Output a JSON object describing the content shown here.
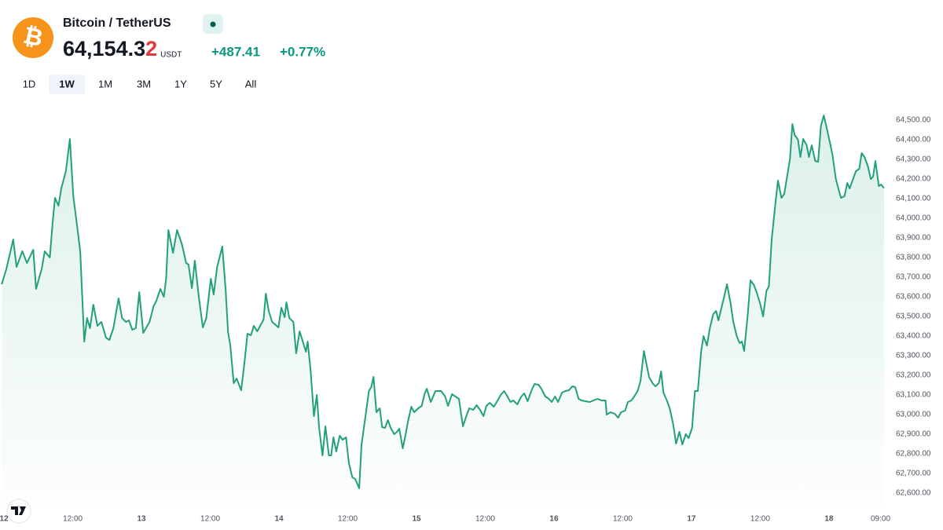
{
  "header": {
    "icon": "₿",
    "title": "Bitcoin / TetherUS",
    "price": "64,154.3",
    "price_last_digit": "2",
    "currency": "USDT",
    "change": "+487.41",
    "change_percent": "+0.77%"
  },
  "timeframes": [
    "1D",
    "1W",
    "1M",
    "3M",
    "1Y",
    "5Y",
    "All"
  ],
  "active_timeframe": "1W",
  "chart_data": {
    "type": "line",
    "color": "#22a07c",
    "grid": false,
    "x": [
      -0.4,
      0.4,
      1.6,
      2.2,
      3.2,
      4.0,
      5.1,
      5.6,
      6.6,
      7.1,
      8.0,
      8.5,
      8.9,
      9.5,
      10.0,
      10.8,
      11.5,
      12.1,
      12.8,
      13.3,
      14.0,
      14.5,
      15.0,
      15.6,
      16.3,
      17.0,
      17.8,
      18.4,
      19.1,
      20.0,
      20.6,
      21.3,
      21.8,
      22.4,
      23.0,
      23.6,
      24.3,
      25.4,
      26.1,
      26.6,
      27.3,
      27.9,
      28.3,
      28.7,
      29.5,
      30.2,
      31.1,
      31.8,
      32.2,
      32.8,
      33.3,
      34.0,
      34.7,
      35.3,
      36.1,
      36.6,
      37.2,
      38.1,
      38.7,
      39.1,
      39.5,
      40.1,
      40.6,
      41.4,
      42.0,
      42.5,
      43.1,
      43.6,
      44.2,
      45.3,
      45.7,
      46.2,
      46.8,
      47.9,
      48.4,
      49.0,
      49.3,
      49.8,
      50.5,
      51.0,
      51.6,
      52.7,
      53.0,
      53.5,
      54.1,
      54.6,
      55.0,
      55.6,
      56.1,
      56.7,
      57.1,
      57.5,
      58.0,
      58.6,
      59.1,
      59.7,
      60.2,
      60.8,
      61.3,
      62.0,
      62.4,
      63.1,
      63.7,
      64.1,
      64.5,
      65.0,
      65.6,
      66.0,
      66.5,
      67.0,
      67.5,
      68.1,
      68.6,
      69.0,
      69.6,
      70.1,
      70.5,
      71.1,
      71.6,
      72.3,
      72.9,
      73.4,
      73.8,
      74.5,
      75.3,
      76.3,
      77.0,
      77.5,
      78.2,
      79.4,
      80.1,
      80.7,
      81.2,
      81.9,
      82.5,
      83.1,
      83.7,
      84.2,
      84.8,
      85.5,
      86.0,
      86.7,
      87.3,
      87.8,
      88.4,
      88.9,
      89.6,
      90.3,
      90.8,
      91.4,
      92.1,
      92.6,
      93.3,
      93.8,
      94.5,
      95.1,
      95.6,
      96.2,
      96.7,
      97.4,
      98.0,
      98.6,
      99.2,
      99.7,
      100.3,
      100.8,
      102.2,
      103.6,
      104.3,
      105.0,
      105.2,
      105.9,
      106.6,
      107.2,
      107.7,
      108.4,
      108.9,
      109.5,
      110.0,
      110.6,
      111.1,
      111.7,
      112.1,
      112.6,
      113.2,
      113.7,
      114.3,
      114.7,
      115.1,
      115.7,
      116.2,
      116.8,
      117.3,
      117.9,
      118.4,
      119.0,
      119.5,
      120.1,
      120.6,
      121.1,
      121.7,
      122.1,
      122.7,
      123.2,
      123.8,
      124.3,
      124.7,
      125.3,
      125.7,
      126.2,
      126.8,
      127.3,
      127.9,
      128.4,
      128.8,
      129.2,
      129.8,
      130.3,
      130.9,
      131.4,
      132.0,
      132.5,
      133.1,
      133.5,
      134.0,
      134.6,
      135.1,
      135.7,
      136.2,
      136.8,
      137.2,
      137.6,
      138.0,
      138.6,
      139.0,
      139.5,
      140.1,
      140.5,
      141.0,
      141.6,
      142.1,
      142.6,
      143.1,
      143.7,
      144.2,
      144.6,
      145.2,
      145.7,
      146.1,
      146.7,
      147.2,
      147.6,
      148.2,
      148.7,
      149.3,
      149.7,
      150.2,
      150.8,
      151.3,
      151.7,
      152.1,
      152.7,
      153.1,
      153.6
    ],
    "values": [
      63664,
      63740,
      63892,
      63752,
      63832,
      63772,
      63840,
      63640,
      63744,
      63832,
      63800,
      63984,
      64104,
      64064,
      64152,
      64240,
      64404,
      64112,
      63952,
      63832,
      63372,
      63492,
      63440,
      63560,
      63452,
      63472,
      63392,
      63380,
      63440,
      63592,
      63492,
      63472,
      63480,
      63432,
      63440,
      63624,
      63416,
      63472,
      63552,
      63580,
      63640,
      63600,
      63692,
      63940,
      63824,
      63940,
      63864,
      63772,
      63764,
      63644,
      63784,
      63600,
      63444,
      63492,
      63692,
      63612,
      63752,
      63856,
      63632,
      63420,
      63352,
      63160,
      63184,
      63124,
      63272,
      63412,
      63404,
      63452,
      63424,
      63484,
      63616,
      63528,
      63472,
      63444,
      63544,
      63496,
      63572,
      63492,
      63472,
      63312,
      63424,
      63320,
      63372,
      63232,
      62992,
      63100,
      62932,
      62792,
      62940,
      62792,
      62792,
      62884,
      62812,
      62892,
      62872,
      62884,
      62752,
      62680,
      62672,
      62624,
      62844,
      62992,
      63120,
      63140,
      63192,
      63012,
      63032,
      62936,
      62932,
      62972,
      62932,
      62900,
      62912,
      62928,
      62828,
      62900,
      62964,
      63040,
      63012,
      63032,
      63044,
      63104,
      63132,
      63064,
      63120,
      63120,
      63092,
      63044,
      63104,
      63080,
      62940,
      62992,
      63032,
      63024,
      63048,
      63024,
      62992,
      63044,
      63060,
      63040,
      63064,
      63100,
      63120,
      63096,
      63064,
      63072,
      63052,
      63092,
      63108,
      63068,
      63124,
      63156,
      63152,
      63132,
      63092,
      63080,
      63064,
      63092,
      63064,
      63112,
      63120,
      63124,
      63144,
      63140,
      63080,
      63072,
      63064,
      63080,
      63072,
      63072,
      63000,
      63012,
      63004,
      62984,
      63012,
      63020,
      63064,
      63072,
      63092,
      63120,
      63172,
      63324,
      63264,
      63192,
      63160,
      63144,
      63160,
      63220,
      63112,
      63072,
      63032,
      62952,
      62852,
      62912,
      62848,
      62900,
      62880,
      62932,
      63120,
      63120,
      63324,
      63400,
      63352,
      63440,
      63512,
      63528,
      63480,
      63552,
      63600,
      63664,
      63572,
      63472,
      63400,
      63364,
      63372,
      63324,
      63504,
      63684,
      63660,
      63620,
      63564,
      63500,
      63632,
      63652,
      63892,
      64064,
      64192,
      64104,
      64124,
      64232,
      64304,
      64480,
      64424,
      64400,
      64312,
      64404,
      64372,
      64312,
      64372,
      64292,
      64288,
      64472,
      64524,
      64448,
      64380,
      64324,
      64200,
      64144,
      64104,
      64112,
      64180,
      64152,
      64200,
      64240,
      64252,
      64332,
      64312,
      64264,
      64200,
      64212,
      64292,
      64164,
      64172,
      64154
    ],
    "xlim": [
      -0.7,
      154.3
    ],
    "xticks": [
      {
        "value": 0,
        "label": "12"
      },
      {
        "value": 12,
        "label": "12:00"
      },
      {
        "value": 24,
        "label": "13"
      },
      {
        "value": 36,
        "label": "12:00"
      },
      {
        "value": 48,
        "label": "14"
      },
      {
        "value": 60,
        "label": "12:00"
      },
      {
        "value": 72,
        "label": "15"
      },
      {
        "value": 84,
        "label": "12:00"
      },
      {
        "value": 96,
        "label": "16"
      },
      {
        "value": 108,
        "label": "12:00"
      },
      {
        "value": 120,
        "label": "17"
      },
      {
        "value": 132,
        "label": "12:00"
      },
      {
        "value": 144,
        "label": "18"
      },
      {
        "value": 153,
        "label": "09:00"
      }
    ],
    "ylim": [
      62532,
      64552
    ],
    "yticks": [
      {
        "value": 62600,
        "label": "62,600.00"
      },
      {
        "value": 62700,
        "label": "62,700.00"
      },
      {
        "value": 62800,
        "label": "62,800.00"
      },
      {
        "value": 62900,
        "label": "62,900.00"
      },
      {
        "value": 63000,
        "label": "63,000.00"
      },
      {
        "value": 63100,
        "label": "63,100.00"
      },
      {
        "value": 63200,
        "label": "63,200.00"
      },
      {
        "value": 63300,
        "label": "63,300.00"
      },
      {
        "value": 63400,
        "label": "63,400.00"
      },
      {
        "value": 63500,
        "label": "63,500.00"
      },
      {
        "value": 63600,
        "label": "63,600.00"
      },
      {
        "value": 63700,
        "label": "63,700.00"
      },
      {
        "value": 63800,
        "label": "63,800.00"
      },
      {
        "value": 63900,
        "label": "63,900.00"
      },
      {
        "value": 64000,
        "label": "64,000.00"
      },
      {
        "value": 64100,
        "label": "64,100.00"
      },
      {
        "value": 64200,
        "label": "64,200.00"
      },
      {
        "value": 64300,
        "label": "64,300.00"
      },
      {
        "value": 64400,
        "label": "64,400.00"
      },
      {
        "value": 64500,
        "label": "64,500.00"
      }
    ]
  }
}
